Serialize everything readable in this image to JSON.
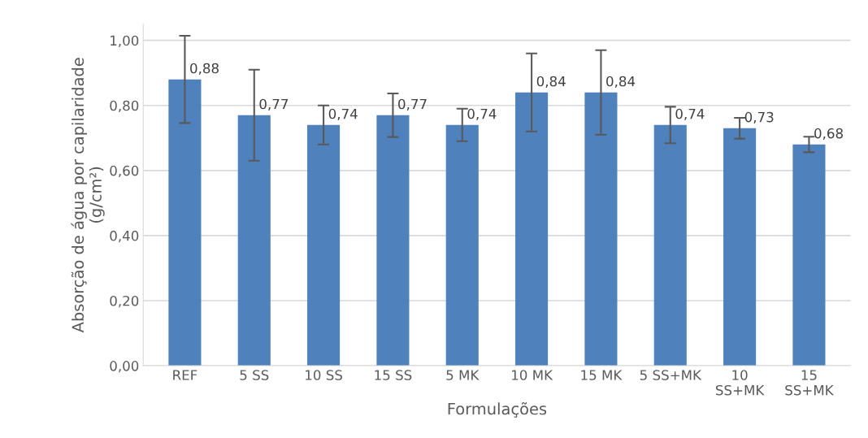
{
  "chart_data": {
    "type": "bar",
    "xlabel": "Formulações",
    "ylabel": "Absorção de água por capilaridade\n(g/cm²)",
    "categories": [
      "REF",
      "5 SS",
      "10 SS",
      "15 SS",
      "5 MK",
      "10 MK",
      "15 MK",
      "5 SS+MK",
      "10\nSS+MK",
      "15\nSS+MK"
    ],
    "values": [
      0.88,
      0.77,
      0.74,
      0.77,
      0.74,
      0.84,
      0.84,
      0.74,
      0.73,
      0.68
    ],
    "value_labels": [
      "0,88",
      "0,77",
      "0,74",
      "0,77",
      "0,74",
      "0,84",
      "0,84",
      "0,74",
      "0,73",
      "0,68"
    ],
    "errors": [
      0.134,
      0.14,
      0.06,
      0.067,
      0.05,
      0.12,
      0.13,
      0.056,
      0.032,
      0.024
    ],
    "color": "#4f81bd",
    "ylim": [
      0,
      1.05
    ],
    "yticks": [
      {
        "value": 0,
        "label": "0,00"
      },
      {
        "value": 0.2,
        "label": "0,20"
      },
      {
        "value": 0.4,
        "label": "0,40"
      },
      {
        "value": 0.6,
        "label": "0,60"
      },
      {
        "value": 0.8,
        "label": "0,80"
      },
      {
        "value": 1.0,
        "label": "1,00"
      }
    ],
    "grid": "y",
    "legend": false
  }
}
